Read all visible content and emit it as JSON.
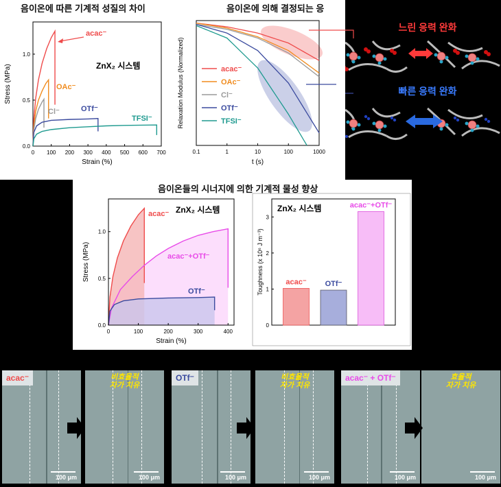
{
  "panel1": {
    "title": "음이온에 따른 기계적 성질의 차이",
    "system_label": "ZnX₂ 시스템",
    "chart_data": {
      "type": "line",
      "xlabel": "Strain (%)",
      "ylabel": "Stress (MPa)",
      "xlim": [
        0,
        700
      ],
      "ylim": [
        0,
        1.35
      ],
      "xticks": [
        0,
        100,
        200,
        300,
        400,
        500,
        600,
        700
      ],
      "yticks": [
        0.0,
        0.5,
        1.0
      ],
      "series": [
        {
          "name": "acac⁻",
          "color": "#ef4b4b",
          "x": [
            0,
            5,
            15,
            30,
            50,
            75,
            100,
            120,
            120
          ],
          "y": [
            0,
            0.3,
            0.52,
            0.72,
            0.9,
            1.06,
            1.18,
            1.25,
            0.45
          ]
        },
        {
          "name": "OAc⁻",
          "color": "#f08c1f",
          "x": [
            0,
            5,
            15,
            30,
            50,
            70,
            85,
            85
          ],
          "y": [
            0,
            0.22,
            0.38,
            0.5,
            0.6,
            0.68,
            0.72,
            0.3
          ]
        },
        {
          "name": "Cl⁻",
          "color": "#9a9a9a",
          "x": [
            0,
            5,
            15,
            30,
            50,
            60,
            60
          ],
          "y": [
            0,
            0.18,
            0.3,
            0.4,
            0.48,
            0.51,
            0.2
          ]
        },
        {
          "name": "OTf⁻",
          "color": "#3a4a9e",
          "x": [
            0,
            5,
            20,
            50,
            100,
            200,
            300,
            355,
            355
          ],
          "y": [
            0,
            0.15,
            0.22,
            0.26,
            0.28,
            0.29,
            0.295,
            0.3,
            0.16
          ]
        },
        {
          "name": "TFSI⁻",
          "color": "#1e9a8f",
          "x": [
            0,
            5,
            20,
            50,
            100,
            200,
            300,
            400,
            500,
            600,
            675,
            675
          ],
          "y": [
            0,
            0.08,
            0.13,
            0.16,
            0.18,
            0.2,
            0.21,
            0.22,
            0.225,
            0.228,
            0.23,
            0.12
          ]
        }
      ]
    }
  },
  "panel2": {
    "title": "음이온에 의해 결정되는 응",
    "chart_data": {
      "type": "line",
      "xlabel": "t (s)",
      "ylabel": "Relaxation Modulus (Normalized)",
      "xscale": "log",
      "xlim": [
        0.1,
        1000
      ],
      "xticks": [
        "0.1",
        "1",
        "10",
        "100",
        "1000"
      ],
      "series": [
        {
          "name": "acac⁻",
          "color": "#ef4b4b",
          "x": [
            0.1,
            1,
            10,
            100,
            1000
          ],
          "y": [
            0.98,
            0.95,
            0.9,
            0.82,
            0.68
          ]
        },
        {
          "name": "OAc⁻",
          "color": "#f08c1f",
          "x": [
            0.1,
            1,
            10,
            100,
            1000
          ],
          "y": [
            0.98,
            0.94,
            0.87,
            0.76,
            0.58
          ]
        },
        {
          "name": "Cl⁻",
          "color": "#9a9a9a",
          "x": [
            0.1,
            1,
            10,
            100,
            1000
          ],
          "y": [
            0.97,
            0.93,
            0.86,
            0.74,
            0.55
          ]
        },
        {
          "name": "OTf⁻",
          "color": "#3a4a9e",
          "x": [
            0.1,
            1,
            10,
            100,
            1000
          ],
          "y": [
            0.97,
            0.9,
            0.76,
            0.5,
            0.1
          ]
        },
        {
          "name": "TFSI⁻",
          "color": "#1e9a8f",
          "x": [
            0.1,
            1,
            10,
            100,
            400
          ],
          "y": [
            0.96,
            0.86,
            0.62,
            0.25,
            0.0
          ]
        }
      ]
    }
  },
  "panel3": {
    "slow_label": "느린 응력 완화",
    "fast_label": "빠른 응력 완화"
  },
  "panel4": {
    "title": "음이온들의 시너지에 의한 기계적 물성 향상",
    "system_label": "ZnX₂ 시스템",
    "stress_chart": {
      "type": "area",
      "xlabel": "Strain (%)",
      "ylabel": "Stress (MPa)",
      "xlim": [
        0,
        420
      ],
      "ylim": [
        0,
        1.35
      ],
      "xticks": [
        0,
        100,
        200,
        300,
        400
      ],
      "yticks": [
        0.0,
        0.5,
        1.0
      ],
      "series": [
        {
          "name": "acac⁻",
          "color": "#ef4b4b",
          "fill": "#f5b5b5",
          "x": [
            0,
            5,
            15,
            30,
            50,
            75,
            100,
            120,
            120
          ],
          "y": [
            0,
            0.3,
            0.52,
            0.72,
            0.9,
            1.06,
            1.18,
            1.25,
            0.45
          ]
        },
        {
          "name": "acac⁻+OTf⁻",
          "color": "#e84be8",
          "fill": "#fbd6fb",
          "x": [
            0,
            10,
            40,
            80,
            120,
            160,
            200,
            250,
            300,
            350,
            400,
            400
          ],
          "y": [
            0,
            0.18,
            0.38,
            0.52,
            0.64,
            0.74,
            0.82,
            0.9,
            0.96,
            1.0,
            1.03,
            0.4
          ]
        },
        {
          "name": "OTf⁻",
          "color": "#3a4a9e",
          "fill": "#c9c6ec",
          "x": [
            0,
            5,
            20,
            50,
            100,
            200,
            300,
            355,
            355
          ],
          "y": [
            0,
            0.15,
            0.22,
            0.26,
            0.28,
            0.29,
            0.295,
            0.3,
            0.16
          ]
        }
      ]
    },
    "toughness_chart": {
      "type": "bar",
      "ylabel": "Toughness (x 10⁶ J m⁻³)",
      "ylim": [
        0,
        3.5
      ],
      "yticks": [
        0,
        1,
        2,
        3
      ],
      "categories": [
        "acac⁻",
        "OTf⁻",
        "acac⁻+OTf⁻"
      ],
      "values": [
        1.02,
        0.97,
        3.15
      ],
      "colors": [
        "#f4a3a3",
        "#a7aedc",
        "#f7bdf7"
      ],
      "edge_colors": [
        "#e55",
        "#556",
        "#d5d"
      ],
      "label_colors": [
        "#ef4b4b",
        "#3a4a9e",
        "#e84be8"
      ]
    }
  },
  "micrographs": [
    {
      "label": "acac⁻",
      "label_color": "#ef4b4b",
      "scale": "100 μm"
    },
    {
      "heal": "비효율적\n자가 치유",
      "scale": "100 μm"
    },
    {
      "label": "OTf⁻",
      "label_color": "#3a4a9e",
      "scale": "100 μm"
    },
    {
      "heal": "비효율적\n자가 치유",
      "scale": "100 μm"
    },
    {
      "label": "acac⁻ + OTf⁻",
      "label_color": "#e84be8",
      "scale": "100 μm"
    },
    {
      "heal": "효율적\n자가 치유",
      "scale": "100 μm"
    }
  ]
}
